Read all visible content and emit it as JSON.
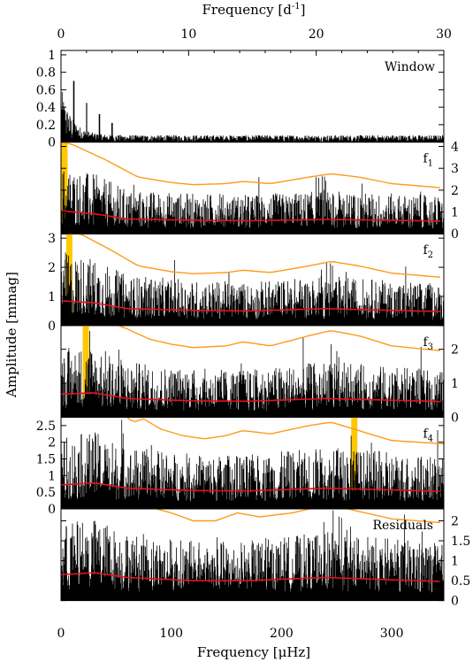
{
  "chart_data": {
    "type": "line",
    "top_axis_label": "Frequency [d",
    "top_axis_label_sup": "-1",
    "top_axis_label_end": "]",
    "bottom_axis_label": "Frequency [μHz]",
    "y_axis_label": "Amplitude [mmag]",
    "xlim_uHz": [
      0,
      347.2
    ],
    "xlim_d": [
      0,
      30
    ],
    "top_ticks": [
      "0",
      "10",
      "20",
      "30"
    ],
    "bottom_ticks": [
      "0",
      "100",
      "200",
      "300"
    ],
    "colors": {
      "spectrum": "#000000",
      "threshold": "#ff9a1a",
      "noise": "#e8101e",
      "marker": "#ffc800"
    },
    "panels": [
      {
        "label": "Window",
        "label_sub": "",
        "ylim": [
          0,
          1.05
        ],
        "y_ticks": [
          "0",
          "0.2",
          "0.4",
          "0.6",
          "0.8",
          "1"
        ],
        "y_tick_values": [
          0,
          0.2,
          0.4,
          0.6,
          0.8,
          1
        ],
        "tick_side": "left",
        "marker_uHz": null,
        "noise_curve": [],
        "threshold_curve": []
      },
      {
        "label": "f",
        "label_sub": "1",
        "ylim": [
          0,
          4.2
        ],
        "y_ticks": [
          "0",
          "1",
          "2",
          "3",
          "4"
        ],
        "y_tick_values": [
          0,
          1,
          2,
          3,
          4
        ],
        "tick_side": "right",
        "marker_uHz": 3.2,
        "noise_curve": [
          [
            0,
            1.05
          ],
          [
            30,
            0.92
          ],
          [
            60,
            0.68
          ],
          [
            120,
            0.62
          ],
          [
            170,
            0.6
          ],
          [
            240,
            0.66
          ],
          [
            300,
            0.62
          ],
          [
            347,
            0.58
          ]
        ],
        "threshold_curve": [
          [
            0,
            4.2
          ],
          [
            10,
            4.1
          ],
          [
            40,
            3.4
          ],
          [
            70,
            2.6
          ],
          [
            100,
            2.35
          ],
          [
            120,
            2.25
          ],
          [
            150,
            2.3
          ],
          [
            165,
            2.4
          ],
          [
            190,
            2.3
          ],
          [
            225,
            2.6
          ],
          [
            245,
            2.75
          ],
          [
            270,
            2.6
          ],
          [
            300,
            2.3
          ],
          [
            347,
            2.1
          ]
        ]
      },
      {
        "label": "f",
        "label_sub": "2",
        "ylim": [
          0,
          3.15
        ],
        "y_ticks": [
          "0",
          "1",
          "2",
          "3"
        ],
        "y_tick_values": [
          0,
          1,
          2,
          3
        ],
        "tick_side": "left",
        "marker_uHz": 7.5,
        "noise_curve": [
          [
            0,
            0.85
          ],
          [
            30,
            0.78
          ],
          [
            60,
            0.58
          ],
          [
            120,
            0.52
          ],
          [
            170,
            0.5
          ],
          [
            240,
            0.58
          ],
          [
            300,
            0.52
          ],
          [
            347,
            0.48
          ]
        ],
        "threshold_curve": [
          [
            0,
            3.3
          ],
          [
            20,
            3.1
          ],
          [
            45,
            2.6
          ],
          [
            70,
            2.05
          ],
          [
            100,
            1.85
          ],
          [
            120,
            1.78
          ],
          [
            150,
            1.82
          ],
          [
            165,
            1.9
          ],
          [
            190,
            1.82
          ],
          [
            225,
            2.05
          ],
          [
            245,
            2.2
          ],
          [
            270,
            2.05
          ],
          [
            300,
            1.8
          ],
          [
            347,
            1.65
          ]
        ]
      },
      {
        "label": "f",
        "label_sub": "3",
        "ylim": [
          0,
          2.7
        ],
        "y_ticks": [
          "0",
          "1",
          "2"
        ],
        "y_tick_values": [
          0,
          1,
          2
        ],
        "tick_side": "right",
        "marker_uHz": 22.5,
        "noise_curve": [
          [
            0,
            0.68
          ],
          [
            30,
            0.72
          ],
          [
            60,
            0.55
          ],
          [
            120,
            0.48
          ],
          [
            170,
            0.47
          ],
          [
            240,
            0.55
          ],
          [
            300,
            0.5
          ],
          [
            347,
            0.46
          ]
        ],
        "threshold_curve": [
          [
            0,
            2.9
          ],
          [
            40,
            2.85
          ],
          [
            60,
            2.6
          ],
          [
            80,
            2.3
          ],
          [
            100,
            2.15
          ],
          [
            120,
            2.05
          ],
          [
            150,
            2.1
          ],
          [
            165,
            2.22
          ],
          [
            190,
            2.1
          ],
          [
            225,
            2.4
          ],
          [
            245,
            2.55
          ],
          [
            270,
            2.4
          ],
          [
            300,
            2.1
          ],
          [
            347,
            1.95
          ]
        ]
      },
      {
        "label": "f",
        "label_sub": "4",
        "ylim": [
          0,
          2.75
        ],
        "y_ticks": [
          "0",
          "0.5",
          "1",
          "1.5",
          "2",
          "2.5"
        ],
        "y_tick_values": [
          0,
          0.5,
          1,
          1.5,
          2,
          2.5
        ],
        "tick_side": "left",
        "marker_uHz": 266,
        "noise_curve": [
          [
            0,
            0.72
          ],
          [
            30,
            0.78
          ],
          [
            60,
            0.62
          ],
          [
            120,
            0.55
          ],
          [
            170,
            0.54
          ],
          [
            240,
            0.62
          ],
          [
            300,
            0.57
          ],
          [
            347,
            0.52
          ]
        ],
        "threshold_curve": [
          [
            55,
            2.9
          ],
          [
            65,
            2.6
          ],
          [
            75,
            2.7
          ],
          [
            90,
            2.4
          ],
          [
            110,
            2.2
          ],
          [
            130,
            2.1
          ],
          [
            150,
            2.2
          ],
          [
            165,
            2.35
          ],
          [
            190,
            2.25
          ],
          [
            225,
            2.5
          ],
          [
            245,
            2.6
          ],
          [
            270,
            2.35
          ],
          [
            300,
            2.05
          ],
          [
            347,
            1.95
          ]
        ]
      },
      {
        "label": "Residuals",
        "label_sub": "",
        "ylim": [
          0,
          2.3
        ],
        "y_ticks": [
          "0",
          "0.5",
          "1",
          "1.5",
          "2"
        ],
        "y_tick_values": [
          0,
          0.5,
          1,
          1.5,
          2
        ],
        "tick_side": "right",
        "marker_uHz": null,
        "noise_curve": [
          [
            0,
            0.65
          ],
          [
            30,
            0.7
          ],
          [
            60,
            0.58
          ],
          [
            120,
            0.5
          ],
          [
            170,
            0.5
          ],
          [
            240,
            0.58
          ],
          [
            300,
            0.52
          ],
          [
            347,
            0.48
          ]
        ],
        "threshold_curve": [
          [
            80,
            2.35
          ],
          [
            100,
            2.2
          ],
          [
            120,
            2.0
          ],
          [
            140,
            2.0
          ],
          [
            160,
            2.2
          ],
          [
            180,
            2.1
          ],
          [
            210,
            2.2
          ],
          [
            240,
            2.4
          ],
          [
            260,
            2.3
          ],
          [
            300,
            2.05
          ],
          [
            347,
            1.95
          ]
        ]
      }
    ]
  }
}
